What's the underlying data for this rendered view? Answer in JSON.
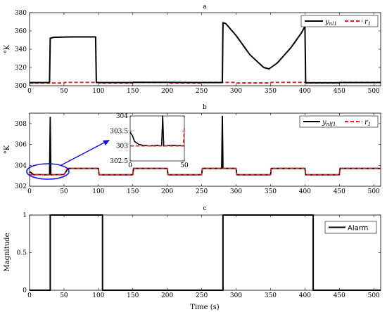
{
  "chart_data": [
    {
      "type": "line",
      "panel_label": "a",
      "ylabel": "°K",
      "xlim": [
        0,
        510
      ],
      "ylim": [
        300,
        380
      ],
      "xticks": [
        0,
        50,
        100,
        150,
        200,
        250,
        300,
        350,
        400,
        450,
        500
      ],
      "yticks": [
        300,
        320,
        340,
        360,
        380
      ],
      "legend_position": "top-right",
      "series": [
        {
          "name": "y_nl1",
          "style": "solid",
          "color": "#000000",
          "points": [
            [
              0,
              303.5
            ],
            [
              29,
              303.5
            ],
            [
              30,
              352
            ],
            [
              35,
              353
            ],
            [
              60,
              353.5
            ],
            [
              96,
              353.5
            ],
            [
              97,
              303.5
            ],
            [
              150,
              303.5
            ],
            [
              151,
              303.8
            ],
            [
              200,
              303.6
            ],
            [
              250,
              303.5
            ],
            [
              280,
              303.5
            ],
            [
              281,
              369
            ],
            [
              285,
              368
            ],
            [
              300,
              355
            ],
            [
              320,
              334
            ],
            [
              340,
              320
            ],
            [
              348,
              318.5
            ],
            [
              360,
              325
            ],
            [
              380,
              342
            ],
            [
              395,
              358
            ],
            [
              400,
              365
            ],
            [
              401,
              303.2
            ],
            [
              450,
              303.2
            ],
            [
              451,
              303.5
            ],
            [
              510,
              303.5
            ]
          ]
        },
        {
          "name": "r_1",
          "style": "dashed",
          "color": "#e02020",
          "points": [
            [
              0,
              303
            ],
            [
              50,
              303
            ],
            [
              51,
              303.7
            ],
            [
              100,
              303.7
            ],
            [
              101,
              303.1
            ],
            [
              150,
              303.1
            ],
            [
              151,
              303.7
            ],
            [
              200,
              303.7
            ],
            [
              201,
              303.1
            ],
            [
              250,
              303.1
            ],
            [
              251,
              303.7
            ],
            [
              300,
              303.7
            ],
            [
              301,
              303.1
            ],
            [
              350,
              303.1
            ],
            [
              351,
              303.7
            ],
            [
              400,
              303.7
            ],
            [
              401,
              303.1
            ],
            [
              450,
              303.1
            ],
            [
              451,
              303.7
            ],
            [
              510,
              303.7
            ]
          ]
        }
      ]
    },
    {
      "type": "line",
      "panel_label": "b",
      "ylabel": "°K",
      "xlim": [
        0,
        510
      ],
      "ylim": [
        302,
        309
      ],
      "xticks": [
        0,
        50,
        100,
        150,
        200,
        250,
        300,
        350,
        400,
        450,
        500
      ],
      "yticks": [
        302,
        304,
        306,
        308
      ],
      "legend_position": "top-right",
      "series": [
        {
          "name": "y_nlf1",
          "style": "solid",
          "color": "#000000",
          "points": [
            [
              0,
              303.4
            ],
            [
              3,
              303.25
            ],
            [
              6,
              303.1
            ],
            [
              10,
              303.12
            ],
            [
              20,
              303.1
            ],
            [
              29,
              303.1
            ],
            [
              30,
              308.6
            ],
            [
              31,
              303.1
            ],
            [
              50,
              303.12
            ],
            [
              56,
              303.7
            ],
            [
              100,
              303.7
            ],
            [
              101,
              303.1
            ],
            [
              150,
              303.1
            ],
            [
              151,
              303.7
            ],
            [
              200,
              303.7
            ],
            [
              201,
              303.1
            ],
            [
              250,
              303.1
            ],
            [
              251,
              303.7
            ],
            [
              279,
              303.7
            ],
            [
              280,
              308.7
            ],
            [
              281,
              303.7
            ],
            [
              300,
              303.7
            ],
            [
              301,
              303.1
            ],
            [
              350,
              303.1
            ],
            [
              351,
              303.7
            ],
            [
              400,
              303.7
            ],
            [
              401,
              303.1
            ],
            [
              450,
              303.1
            ],
            [
              451,
              303.7
            ],
            [
              510,
              303.7
            ]
          ]
        },
        {
          "name": "r_1",
          "style": "dashed",
          "color": "#e02020",
          "points": [
            [
              0,
              303.1
            ],
            [
              50,
              303.1
            ],
            [
              55,
              303.7
            ],
            [
              100,
              303.7
            ],
            [
              101,
              303.1
            ],
            [
              150,
              303.1
            ],
            [
              151,
              303.7
            ],
            [
              200,
              303.7
            ],
            [
              201,
              303.1
            ],
            [
              250,
              303.1
            ],
            [
              251,
              303.7
            ],
            [
              300,
              303.7
            ],
            [
              301,
              303.1
            ],
            [
              350,
              303.1
            ],
            [
              351,
              303.7
            ],
            [
              400,
              303.7
            ],
            [
              401,
              303.1
            ],
            [
              450,
              303.1
            ],
            [
              451,
              303.7
            ],
            [
              510,
              303.7
            ]
          ]
        }
      ],
      "inset": {
        "xlim": [
          0,
          50
        ],
        "ylim": [
          302.5,
          304
        ],
        "xticks": [
          0,
          50
        ],
        "yticks": [
          302.5,
          303,
          303.5,
          304
        ],
        "series": [
          {
            "name": "y_nlf1",
            "style": "solid",
            "color": "#000000",
            "points": [
              [
                0,
                303.45
              ],
              [
                2,
                303.35
              ],
              [
                4,
                303.15
              ],
              [
                8,
                303.05
              ],
              [
                12,
                303.02
              ],
              [
                18,
                303.0
              ],
              [
                25,
                303.02
              ],
              [
                29,
                303.0
              ],
              [
                30,
                304.0
              ],
              [
                31,
                303.0
              ],
              [
                40,
                303.02
              ],
              [
                50,
                303.0
              ]
            ]
          },
          {
            "name": "r_1",
            "style": "dashed",
            "color": "#e02020",
            "points": [
              [
                0,
                303.0
              ],
              [
                49,
                303.0
              ],
              [
                50,
                303.6
              ]
            ]
          }
        ]
      }
    },
    {
      "type": "line",
      "panel_label": "c",
      "xlabel": "Time (s)",
      "ylabel": "Magnitude",
      "xlim": [
        0,
        510
      ],
      "ylim": [
        0,
        1
      ],
      "xticks": [
        0,
        50,
        100,
        150,
        200,
        250,
        300,
        350,
        400,
        450,
        500
      ],
      "yticks": [
        0,
        0.5,
        1
      ],
      "legend_position": "top-right",
      "series": [
        {
          "name": "Alarm",
          "style": "solid",
          "color": "#000000",
          "points": [
            [
              0,
              0
            ],
            [
              30,
              0
            ],
            [
              30,
              1
            ],
            [
              106,
              1
            ],
            [
              106,
              0
            ],
            [
              281,
              0
            ],
            [
              281,
              1
            ],
            [
              412,
              1
            ],
            [
              412,
              0
            ],
            [
              510,
              0
            ]
          ]
        }
      ]
    }
  ],
  "legend_text": {
    "a": {
      "s1_main": "y",
      "s1_sub": "nl1",
      "s2_main": "r",
      "s2_sub": "1"
    },
    "b": {
      "s1_main": "y",
      "s1_sub": "nlf1",
      "s2_main": "r",
      "s2_sub": "1"
    },
    "c": {
      "s1": "Alarm"
    }
  },
  "colors": {
    "measurement": "#000000",
    "reference": "#e02020",
    "highlight": "#1010e0"
  }
}
